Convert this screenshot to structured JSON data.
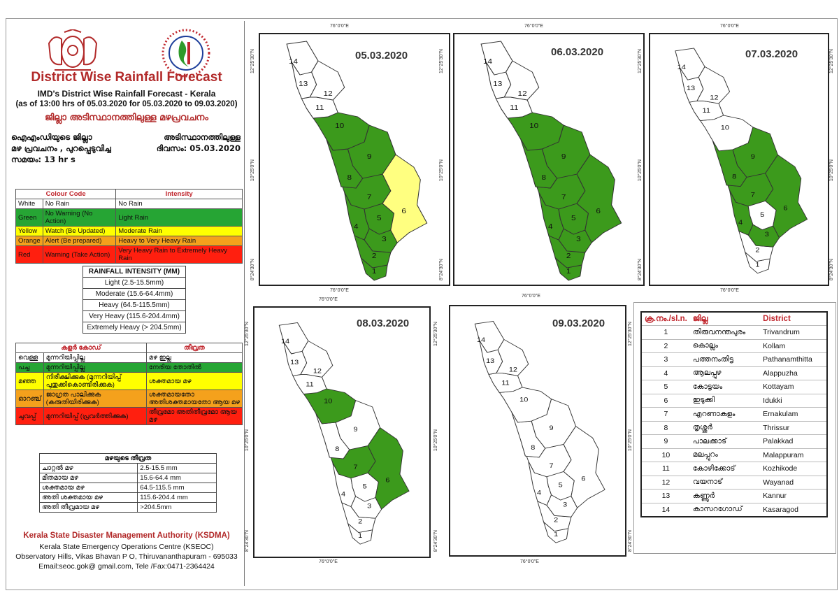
{
  "header": {
    "title": "District Wise Rainfall Forecast",
    "subtitle": "IMD's District Wise Rainfall Forecast - Kerala",
    "issued": "(as of 13:00 hrs of 05.03.2020  for 05.03.2020  to 09.03.2020)",
    "ml_title": "ജില്ലാ അടിസ്ഥാനത്തിലുള്ള മഴപ്രവചനം",
    "ml_line1a": "ഐഎംഡിയുടെ ജില്ലാ",
    "ml_line1b": "അടിസ്ഥാനത്തിലുള്ള",
    "ml_line2a": "മഴ പ്രവചനം , പുറപ്പെടുവിച്ച",
    "ml_line2b": "ദിവസം: 05.03.2020",
    "ml_line3": "സമയം: 13  hr s"
  },
  "colour_code": {
    "head_code": "Colour Code",
    "head_intensity": "Intensity",
    "rows": [
      {
        "colour": "White",
        "code": "No Rain",
        "intensity": "No Rain"
      },
      {
        "colour": "Green",
        "code": "No Warning (No Action)",
        "intensity": "Light Rain"
      },
      {
        "colour": "Yellow",
        "code": "Watch (Be Updated)",
        "intensity": "Moderate Rain"
      },
      {
        "colour": "Orange",
        "code": "Alert (Be prepared)",
        "intensity": "Heavy to Very Heavy Rain"
      },
      {
        "colour": "Red",
        "code": "Warning (Take Action)",
        "intensity": "Very Heavy Rain to Extremely Heavy Rain"
      }
    ]
  },
  "rainfall_intensity": {
    "head": "RAINFALL INTENSITY (MM)",
    "rows": [
      "Light (2.5-15.5mm)",
      "Moderate (15.6-64.4mm)",
      "Heavy (64.5-115.5mm)",
      "Very Heavy (115.6-204.4mm)",
      "Extremely Heavy (> 204.5mm)"
    ]
  },
  "ml_colour_code": {
    "head_code": "കളർ കോഡ്",
    "head_intensity": "തീവ്രത",
    "rows": [
      {
        "colour": "വെള്ള",
        "code": "മുന്നറിയിപ്പില്ല",
        "intensity": "മഴ ഇല്ല"
      },
      {
        "colour": "പച്ച",
        "code": "മുന്നറിയിപ്പില്ല",
        "intensity": "നേരിയ തോതിൽ"
      },
      {
        "colour": "മഞ്ഞ",
        "code": "നിരീക്ഷിക്കുക (മുന്നറിയിപ്പ് പുതുക്കികൊണ്ടിരിക്കുക)",
        "intensity": "ശക്തമായ മഴ"
      },
      {
        "colour": "ഓറഞ്ച്",
        "code": "ജാഗ്രത പാലിക്കുക (കരുതിയിരിക്കുക)",
        "intensity": "ശക്തമായതോ അതിശക്തമായതോ ആയ മഴ"
      },
      {
        "colour": "ചുവപ്പ്",
        "code": "മുന്നറിയിപ്പ് (പ്രവർത്തിക്കുക)",
        "intensity": "തീവ്രമോ അതിതീവ്രമോ ആയ മഴ"
      }
    ]
  },
  "ml_intensity": {
    "head": "മഴയുടെ തീവ്രത",
    "rows": [
      {
        "label": "ചാറ്റൽ മഴ",
        "range": "2.5-15.5 mm"
      },
      {
        "label": "മിതമായ മഴ",
        "range": "15.6-64.4 mm"
      },
      {
        "label": "ശക്തമായ മഴ",
        "range": "64.5-115.5 mm"
      },
      {
        "label": "അതി ശക്തമായ മഴ",
        "range": "115.6-204.4 mm"
      },
      {
        "label": "അതി തീവ്രമായ മഴ",
        "range": ">204.5mm"
      }
    ]
  },
  "footer": {
    "org": "Kerala State Disaster Management Authority (KSDMA)",
    "line2": "Kerala State Emergency Operations Centre (KSEOC)",
    "line3": "Observatory Hills, Vikas Bhavan P O, Thiruvananthapuram - 695033",
    "line4": "Email:seoc.gok@ gmail.com, Tele /Fax:0471-2364424"
  },
  "map_coords": {
    "lon": "76°0'0\"E",
    "lat_n": "12°25'30\"N",
    "lat_m": "10°25'0\"N",
    "lat_s": "8°24'30\"N"
  },
  "colors": {
    "white": "#ffffff",
    "green": "#3c9a1c",
    "yellow": "#ffff80",
    "orange": "#f4a11c",
    "red": "#ff1f0f"
  },
  "maps": [
    {
      "date": "05.03.2020",
      "levels": {
        "1": "green",
        "2": "green",
        "3": "green",
        "4": "green",
        "5": "green",
        "6": "yellow",
        "7": "green",
        "8": "green",
        "9": "green",
        "10": "green",
        "11": "white",
        "12": "white",
        "13": "white",
        "14": "white"
      }
    },
    {
      "date": "06.03.2020",
      "levels": {
        "1": "green",
        "2": "green",
        "3": "green",
        "4": "green",
        "5": "green",
        "6": "green",
        "7": "green",
        "8": "green",
        "9": "green",
        "10": "green",
        "11": "white",
        "12": "white",
        "13": "white",
        "14": "white"
      }
    },
    {
      "date": "07.03.2020",
      "levels": {
        "1": "white",
        "2": "white",
        "3": "green",
        "4": "green",
        "5": "white",
        "6": "green",
        "7": "green",
        "8": "green",
        "9": "green",
        "10": "white",
        "11": "white",
        "12": "white",
        "13": "white",
        "14": "white"
      }
    },
    {
      "date": "08.03.2020",
      "levels": {
        "1": "white",
        "2": "white",
        "3": "white",
        "4": "white",
        "5": "white",
        "6": "green",
        "7": "green",
        "8": "white",
        "9": "white",
        "10": "green",
        "11": "white",
        "12": "white",
        "13": "white",
        "14": "white"
      }
    },
    {
      "date": "09.03.2020",
      "levels": {
        "1": "white",
        "2": "white",
        "3": "white",
        "4": "white",
        "5": "white",
        "6": "white",
        "7": "white",
        "8": "white",
        "9": "white",
        "10": "white",
        "11": "white",
        "12": "white",
        "13": "white",
        "14": "white"
      }
    }
  ],
  "districts": {
    "head_no": "ക്ര.നം./sl.n.",
    "head_ml": "ജില്ല",
    "head_en": "District",
    "rows": [
      {
        "no": "1",
        "ml": "തിരുവനന്തപുരം",
        "en": "Trivandrum"
      },
      {
        "no": "2",
        "ml": "കൊല്ലം",
        "en": "Kollam"
      },
      {
        "no": "3",
        "ml": "പത്തനംതിട്ട",
        "en": "Pathanamthitta"
      },
      {
        "no": "4",
        "ml": "ആലപ്പുഴ",
        "en": "Alappuzha"
      },
      {
        "no": "5",
        "ml": "കോട്ടയം",
        "en": "Kottayam"
      },
      {
        "no": "6",
        "ml": "ഇടുക്കി",
        "en": "Idukki"
      },
      {
        "no": "7",
        "ml": "എറണാകുളം",
        "en": "Ernakulam"
      },
      {
        "no": "8",
        "ml": "തൃശ്ശൂർ",
        "en": "Thrissur"
      },
      {
        "no": "9",
        "ml": "പാലക്കാട്",
        "en": "Palakkad"
      },
      {
        "no": "10",
        "ml": "മലപ്പുറം",
        "en": "Malappuram"
      },
      {
        "no": "11",
        "ml": "കോഴിക്കോട്",
        "en": "Kozhikode"
      },
      {
        "no": "12",
        "ml": "വയനാട്",
        "en": "Wayanad"
      },
      {
        "no": "13",
        "ml": "കണ്ണൂർ",
        "en": "Kannur"
      },
      {
        "no": "14",
        "ml": "കാസറഗോഡ്",
        "en": "Kasaragod"
      }
    ]
  }
}
